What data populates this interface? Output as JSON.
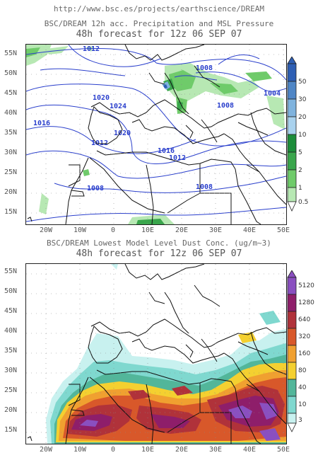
{
  "source_url": "http://www.bsc.es/projects/earthscience/DREAM",
  "top_map": {
    "title": "BSC/DREAM 12h acc. Precipitation and MSL Pressure",
    "subtitle": "48h forecast for 12z 06 SEP 07",
    "isobar_labels": [
      "1012",
      "1008",
      "1020",
      "1024",
      "1020",
      "1016",
      "1012",
      "1016",
      "1012",
      "1008",
      "1008",
      "1004",
      "1008"
    ],
    "colorbar": {
      "labels": [
        "50",
        "30",
        "20",
        "10",
        "5",
        "2",
        "1",
        "0.5"
      ],
      "colors": [
        "#2e5fb4",
        "#4f86c6",
        "#7fb3de",
        "#a9d2ee",
        "#1c8d3a",
        "#3aa64c",
        "#6fcb6a",
        "#b7e8b3"
      ]
    }
  },
  "bottom_map": {
    "title": "BSC/DREAM Lowest Model Level Dust Conc. (ug/m~3)",
    "subtitle": "48h forecast for 12z 06 SEP 07",
    "colorbar": {
      "labels": [
        "5120",
        "1280",
        "640",
        "320",
        "160",
        "80",
        "40",
        "10",
        "3"
      ],
      "colors": [
        "#8a4fc0",
        "#8e1e6a",
        "#b0323a",
        "#d8582a",
        "#f0a030",
        "#f4d030",
        "#52b69a",
        "#7fd8cf",
        "#c8f1ef"
      ]
    }
  },
  "lat_labels": [
    "55N",
    "50N",
    "45N",
    "40N",
    "35N",
    "30N",
    "25N",
    "20N",
    "15N"
  ],
  "lon_labels": [
    "20W",
    "10W",
    "0",
    "10E",
    "20E",
    "30E",
    "40E",
    "50E"
  ]
}
